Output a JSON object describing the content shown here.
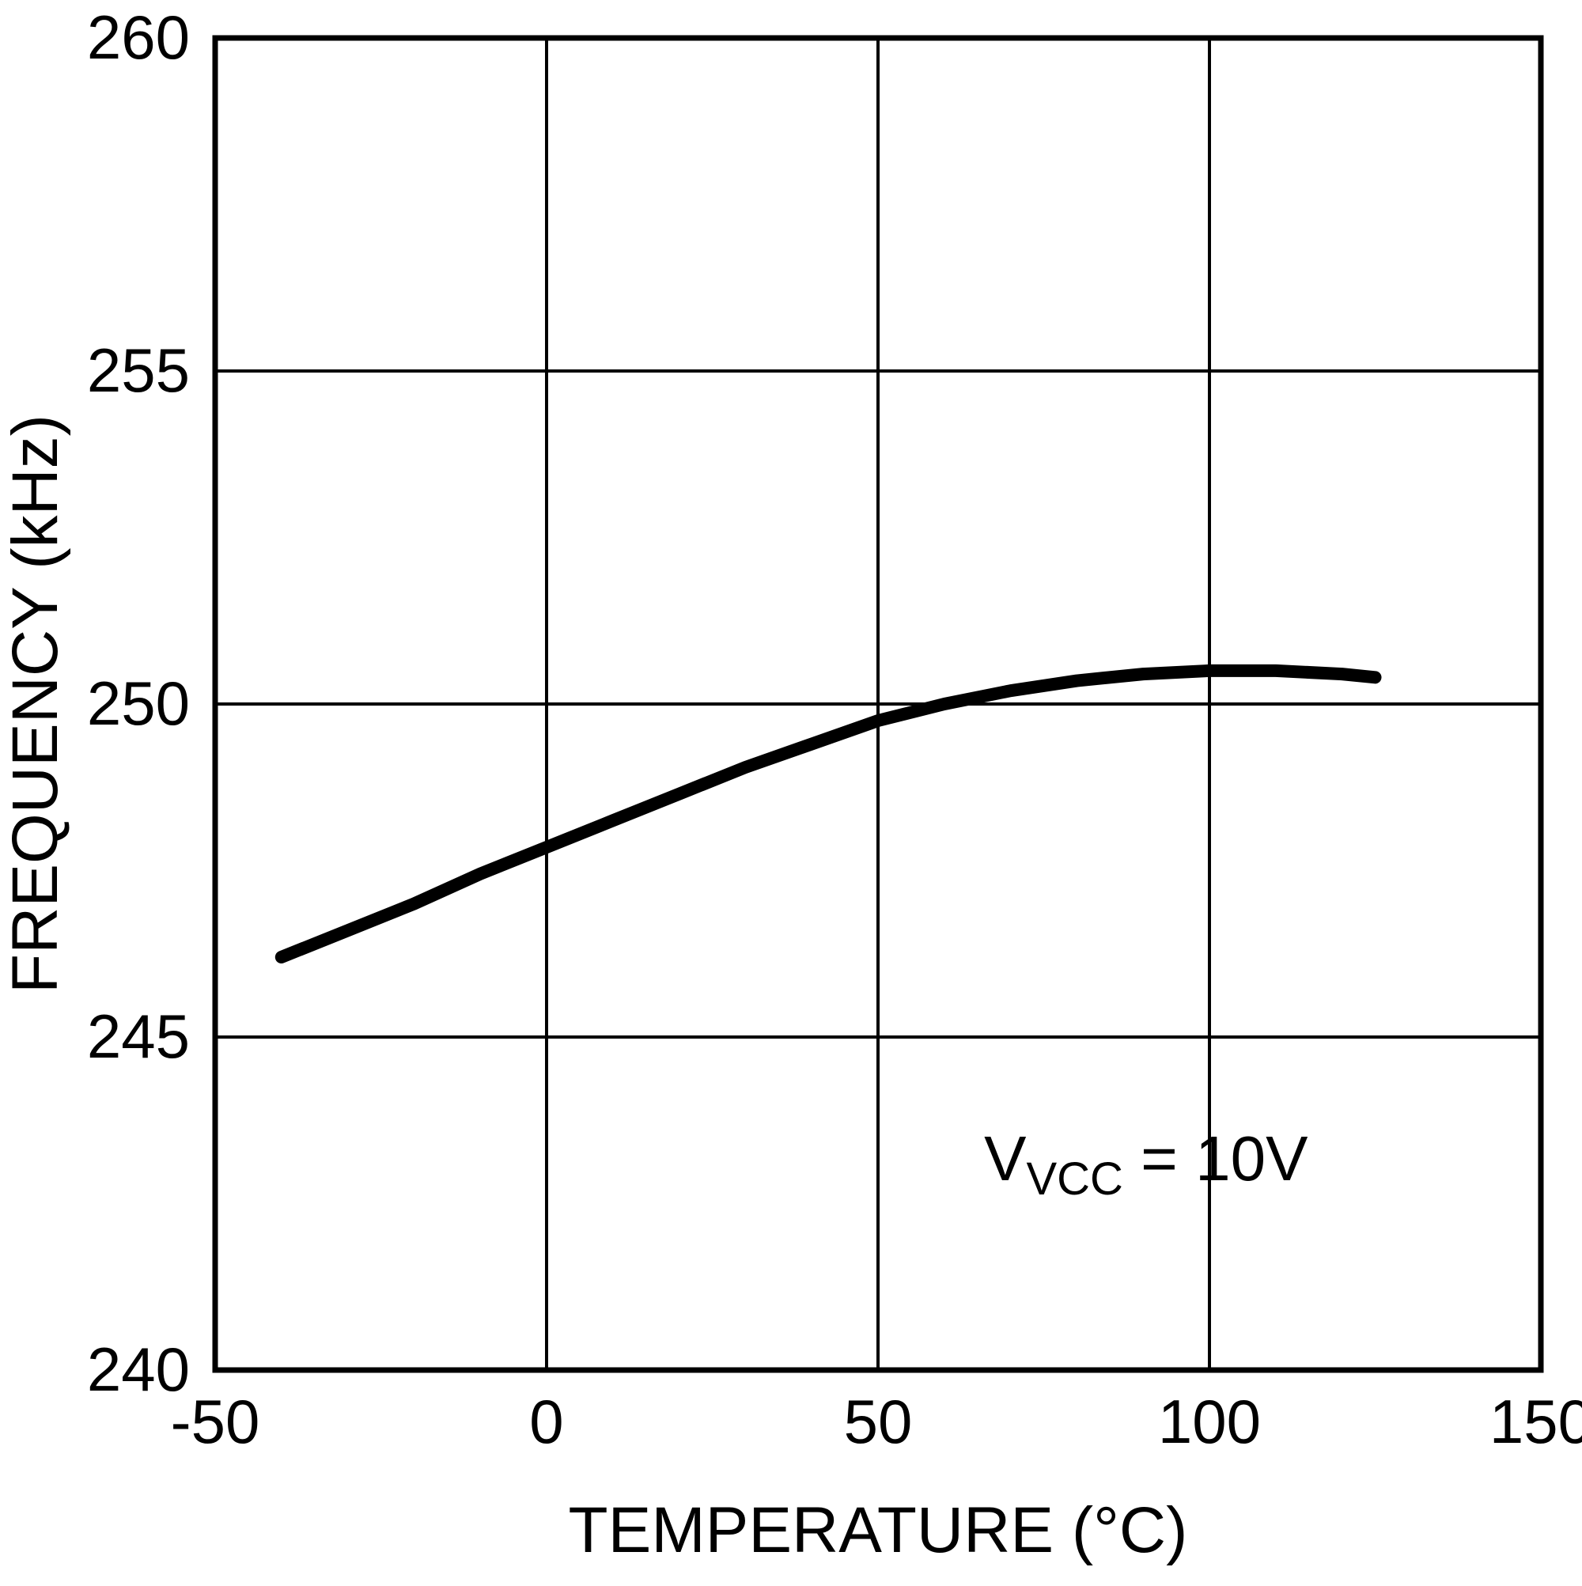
{
  "chart_data": {
    "type": "line",
    "title": "",
    "xlabel": "TEMPERATURE (°C)",
    "ylabel": "FREQUENCY (kHz)",
    "xlim": [
      -50,
      150
    ],
    "ylim": [
      240,
      260
    ],
    "xticks": [
      -50,
      0,
      50,
      100,
      150
    ],
    "yticks": [
      240,
      245,
      250,
      255,
      260
    ],
    "xtick_labels": [
      "-50",
      "0",
      "50",
      "100",
      "150"
    ],
    "ytick_labels": [
      "240",
      "245",
      "250",
      "255",
      "260"
    ],
    "grid": true,
    "line_color": "#000000",
    "grid_color": "#000000",
    "background_color": "#ffffff",
    "series": [
      {
        "name": "VVCC = 10V",
        "x": [
          -40,
          -30,
          -20,
          -10,
          0,
          10,
          20,
          30,
          40,
          50,
          60,
          70,
          80,
          90,
          100,
          110,
          120,
          125
        ],
        "y": [
          246.2,
          246.6,
          247.0,
          247.45,
          247.85,
          248.25,
          248.65,
          249.05,
          249.4,
          249.75,
          250.0,
          250.2,
          250.35,
          250.45,
          250.5,
          250.5,
          250.45,
          250.4
        ]
      }
    ],
    "annotation": {
      "pre": "V",
      "sub": "VCC",
      "post": " = 10V",
      "x": 66,
      "y": 242.85
    }
  }
}
